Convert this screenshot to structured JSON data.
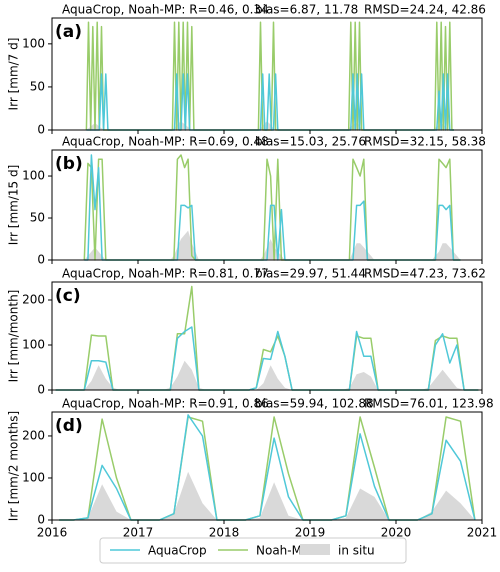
{
  "chart_data": [
    {
      "type": "line",
      "panel_label": "(a)",
      "ylabel": "Irr [mm/7 d]",
      "title": [
        "AquaCrop, Noah-MP: R=0.46, 0.34",
        "bias=6.87, 11.78",
        "RMSD=24.24, 42.86"
      ],
      "xlim": [
        2016,
        2021
      ],
      "xticks": [
        2016,
        2017,
        2018,
        2019,
        2020,
        2021
      ],
      "ylim": [
        0,
        130
      ],
      "yticks": [
        0,
        50,
        100
      ],
      "x": [
        2016.4,
        2016.425,
        2016.45,
        2016.475,
        2016.5,
        2016.525,
        2016.55,
        2016.575,
        2016.6,
        2016.625,
        2016.65,
        2016.675,
        2017.4,
        2017.425,
        2017.45,
        2017.475,
        2017.5,
        2017.525,
        2017.55,
        2017.575,
        2017.6,
        2017.625,
        2017.65,
        2017.675,
        2018.4,
        2018.425,
        2018.45,
        2018.475,
        2018.5,
        2018.525,
        2018.55,
        2018.575,
        2018.6,
        2018.625,
        2018.65,
        2018.675,
        2019.4,
        2019.425,
        2019.45,
        2019.475,
        2019.5,
        2019.525,
        2019.55,
        2019.575,
        2019.6,
        2019.625,
        2019.65,
        2019.675,
        2020.4,
        2020.425,
        2020.45,
        2020.475,
        2020.5,
        2020.525,
        2020.55,
        2020.575,
        2020.6,
        2020.625,
        2020.65,
        2020.675
      ],
      "series": [
        {
          "name": "in situ",
          "color": "#d9d9d9",
          "area": true,
          "values": [
            0,
            2,
            4,
            6,
            8,
            6,
            4,
            2,
            0,
            0,
            0,
            0,
            0,
            3,
            5,
            8,
            10,
            8,
            6,
            4,
            2,
            0,
            0,
            0,
            0,
            2,
            5,
            8,
            10,
            8,
            5,
            2,
            0,
            0,
            0,
            0,
            0,
            0,
            2,
            4,
            6,
            8,
            8,
            5,
            2,
            0,
            0,
            0,
            0,
            0,
            2,
            4,
            6,
            8,
            6,
            4,
            2,
            0,
            0,
            0
          ]
        },
        {
          "name": "Noah-MP",
          "color": "#99cc6a",
          "values": [
            0,
            125,
            0,
            120,
            0,
            125,
            0,
            120,
            0,
            0,
            0,
            0,
            0,
            125,
            0,
            125,
            0,
            125,
            0,
            125,
            0,
            120,
            0,
            0,
            0,
            125,
            0,
            0,
            0,
            0,
            0,
            125,
            0,
            0,
            0,
            0,
            0,
            0,
            0,
            125,
            0,
            125,
            0,
            125,
            0,
            0,
            0,
            0,
            0,
            0,
            0,
            125,
            0,
            125,
            0,
            120,
            0,
            125,
            0,
            0
          ]
        },
        {
          "name": "AquaCrop",
          "color": "#4fc8d8",
          "values": [
            0,
            0,
            0,
            0,
            0,
            0,
            0,
            65,
            0,
            65,
            0,
            0,
            0,
            0,
            65,
            0,
            0,
            65,
            0,
            65,
            0,
            0,
            0,
            0,
            0,
            0,
            65,
            0,
            0,
            65,
            0,
            0,
            65,
            0,
            0,
            0,
            0,
            0,
            0,
            0,
            65,
            0,
            65,
            0,
            65,
            0,
            0,
            0,
            0,
            0,
            0,
            0,
            45,
            0,
            65,
            0,
            65,
            0,
            0,
            0
          ]
        }
      ]
    },
    {
      "type": "line",
      "panel_label": "(b)",
      "ylabel": "Irr [mm/15 d]",
      "title": [
        "AquaCrop, Noah-MP: R=0.69, 0.48",
        "bias=15.03, 25.76",
        "RMSD=32.15, 58.38"
      ],
      "xlim": [
        2016,
        2021
      ],
      "xticks": [
        2016,
        2017,
        2018,
        2019,
        2020,
        2021
      ],
      "ylim": [
        0,
        131
      ],
      "yticks": [
        0,
        50,
        100
      ],
      "x": [
        2016.375,
        2016.417,
        2016.458,
        2016.5,
        2016.542,
        2016.583,
        2016.625,
        2016.667,
        2016.708,
        2016.75,
        2017.375,
        2017.417,
        2017.458,
        2017.5,
        2017.542,
        2017.583,
        2017.625,
        2017.667,
        2017.708,
        2017.75,
        2018.375,
        2018.417,
        2018.458,
        2018.5,
        2018.542,
        2018.583,
        2018.625,
        2018.667,
        2018.708,
        2018.75,
        2019.375,
        2019.417,
        2019.458,
        2019.5,
        2019.542,
        2019.583,
        2019.625,
        2019.667,
        2019.708,
        2019.75,
        2020.375,
        2020.417,
        2020.458,
        2020.5,
        2020.542,
        2020.583,
        2020.625,
        2020.667,
        2020.708,
        2020.75
      ],
      "series": [
        {
          "name": "in situ",
          "color": "#d9d9d9",
          "area": true,
          "values": [
            0,
            5,
            10,
            15,
            10,
            5,
            0,
            0,
            0,
            0,
            0,
            5,
            15,
            25,
            30,
            35,
            20,
            10,
            0,
            0,
            0,
            0,
            5,
            15,
            25,
            15,
            10,
            5,
            0,
            0,
            0,
            0,
            0,
            10,
            20,
            20,
            15,
            10,
            5,
            0,
            0,
            0,
            5,
            10,
            20,
            20,
            15,
            10,
            5,
            0
          ]
        },
        {
          "name": "Noah-MP",
          "color": "#99cc6a",
          "values": [
            0,
            115,
            110,
            0,
            120,
            120,
            0,
            0,
            0,
            0,
            0,
            0,
            120,
            125,
            110,
            120,
            5,
            0,
            0,
            0,
            0,
            0,
            0,
            120,
            100,
            0,
            120,
            0,
            0,
            0,
            0,
            0,
            0,
            120,
            110,
            100,
            120,
            0,
            0,
            0,
            0,
            0,
            0,
            120,
            115,
            110,
            120,
            0,
            0,
            0
          ]
        },
        {
          "name": "AquaCrop",
          "color": "#4fc8d8",
          "values": [
            0,
            0,
            125,
            60,
            110,
            0,
            0,
            0,
            0,
            0,
            0,
            0,
            0,
            65,
            65,
            62,
            65,
            0,
            0,
            0,
            0,
            0,
            0,
            0,
            65,
            65,
            0,
            60,
            0,
            0,
            0,
            0,
            0,
            0,
            65,
            65,
            70,
            0,
            0,
            0,
            0,
            0,
            0,
            65,
            65,
            60,
            65,
            0,
            0,
            0
          ]
        }
      ]
    },
    {
      "type": "line",
      "panel_label": "(c)",
      "ylabel": "Irr [mm/month]",
      "title": [
        "AquaCrop, Noah-MP: R=0.81, 0.77",
        "bias=29.97, 51.44",
        "RMSD=47.23, 73.62"
      ],
      "xlim": [
        2016,
        2021
      ],
      "xticks": [
        2016,
        2017,
        2018,
        2019,
        2020,
        2021
      ],
      "ylim": [
        0,
        240
      ],
      "yticks": [
        0,
        100,
        200
      ],
      "x": [
        2016.042,
        2016.125,
        2016.208,
        2016.292,
        2016.375,
        2016.458,
        2016.542,
        2016.625,
        2016.708,
        2016.792,
        2016.875,
        2016.958,
        2017.042,
        2017.125,
        2017.208,
        2017.292,
        2017.375,
        2017.458,
        2017.542,
        2017.625,
        2017.708,
        2017.792,
        2017.875,
        2017.958,
        2018.042,
        2018.125,
        2018.208,
        2018.292,
        2018.375,
        2018.458,
        2018.542,
        2018.625,
        2018.708,
        2018.792,
        2018.875,
        2018.958,
        2019.042,
        2019.125,
        2019.208,
        2019.292,
        2019.375,
        2019.458,
        2019.542,
        2019.625,
        2019.708,
        2019.792,
        2019.875,
        2019.958,
        2020.042,
        2020.125,
        2020.208,
        2020.292,
        2020.375,
        2020.458,
        2020.542,
        2020.625,
        2020.708,
        2020.792,
        2020.875,
        2020.958
      ],
      "series": [
        {
          "name": "in situ",
          "color": "#d9d9d9",
          "area": true,
          "values": [
            0,
            0,
            0,
            0,
            0,
            20,
            55,
            25,
            5,
            0,
            0,
            0,
            0,
            0,
            0,
            0,
            5,
            30,
            65,
            45,
            5,
            0,
            0,
            0,
            0,
            0,
            0,
            0,
            0,
            15,
            55,
            25,
            5,
            0,
            0,
            0,
            0,
            0,
            0,
            0,
            0,
            5,
            35,
            40,
            30,
            0,
            0,
            0,
            0,
            0,
            0,
            0,
            5,
            25,
            45,
            25,
            5,
            0,
            0,
            0
          ]
        },
        {
          "name": "Noah-MP",
          "color": "#99cc6a",
          "values": [
            0,
            0,
            0,
            0,
            0,
            122,
            120,
            120,
            0,
            0,
            0,
            0,
            0,
            0,
            0,
            0,
            0,
            125,
            125,
            230,
            0,
            0,
            0,
            0,
            0,
            0,
            0,
            0,
            5,
            90,
            85,
            120,
            75,
            0,
            0,
            0,
            0,
            0,
            0,
            0,
            0,
            0,
            120,
            115,
            115,
            0,
            0,
            0,
            0,
            0,
            0,
            0,
            0,
            110,
            120,
            115,
            115,
            0,
            0,
            0
          ]
        },
        {
          "name": "AquaCrop",
          "color": "#4fc8d8",
          "values": [
            0,
            0,
            0,
            0,
            0,
            65,
            65,
            62,
            0,
            0,
            0,
            0,
            0,
            0,
            0,
            0,
            0,
            115,
            130,
            140,
            0,
            0,
            0,
            0,
            0,
            0,
            0,
            0,
            5,
            70,
            68,
            130,
            75,
            0,
            0,
            0,
            0,
            0,
            0,
            0,
            0,
            0,
            130,
            75,
            75,
            0,
            0,
            0,
            0,
            0,
            0,
            0,
            0,
            100,
            125,
            60,
            100,
            0,
            0,
            0
          ]
        }
      ]
    },
    {
      "type": "line",
      "panel_label": "(d)",
      "ylabel": "Irr [mm/2 months]",
      "title": [
        "AquaCrop, Noah-MP: R=0.91, 0.86",
        "bias=59.94, 102.88",
        "RMSD=76.01, 123.98"
      ],
      "xlim": [
        2016,
        2021
      ],
      "xticks": [
        2016,
        2017,
        2018,
        2019,
        2020,
        2021
      ],
      "xtick_labels": true,
      "ylim": [
        0,
        257
      ],
      "yticks": [
        0,
        100,
        200
      ],
      "legend": "below",
      "x": [
        2016.083,
        2016.25,
        2016.417,
        2016.583,
        2016.75,
        2016.917,
        2017.083,
        2017.25,
        2017.417,
        2017.583,
        2017.75,
        2017.917,
        2018.083,
        2018.25,
        2018.417,
        2018.583,
        2018.75,
        2018.917,
        2019.083,
        2019.25,
        2019.417,
        2019.583,
        2019.75,
        2019.917,
        2020.083,
        2020.25,
        2020.417,
        2020.583,
        2020.75,
        2020.917
      ],
      "series": [
        {
          "name": "in situ",
          "color": "#d9d9d9",
          "area": true,
          "values": [
            0,
            0,
            5,
            85,
            20,
            0,
            0,
            0,
            15,
            115,
            40,
            0,
            0,
            0,
            5,
            90,
            10,
            0,
            0,
            0,
            5,
            75,
            55,
            0,
            0,
            0,
            20,
            70,
            40,
            0
          ]
        },
        {
          "name": "Noah-MP",
          "color": "#99cc6a",
          "values": [
            0,
            0,
            5,
            240,
            100,
            0,
            0,
            0,
            15,
            245,
            235,
            0,
            0,
            0,
            10,
            245,
            110,
            0,
            0,
            0,
            10,
            245,
            125,
            0,
            0,
            0,
            15,
            245,
            235,
            0
          ]
        },
        {
          "name": "AquaCrop",
          "color": "#4fc8d8",
          "values": [
            0,
            0,
            5,
            130,
            75,
            0,
            0,
            0,
            15,
            250,
            200,
            0,
            0,
            0,
            10,
            195,
            55,
            0,
            0,
            0,
            10,
            205,
            80,
            0,
            0,
            0,
            15,
            190,
            140,
            0
          ]
        }
      ]
    }
  ]
}
